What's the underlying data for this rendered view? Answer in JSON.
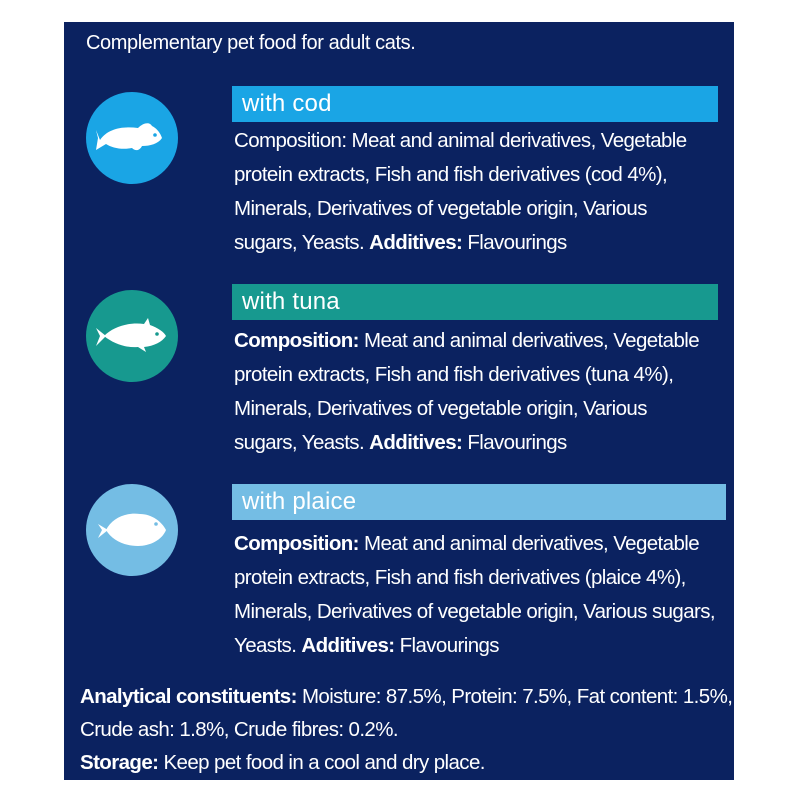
{
  "intro": "Complementary pet food for adult cats.",
  "colors": {
    "panel": "#0b2260",
    "cod": "#1aa5e5",
    "tuna": "#17998f",
    "plaice": "#74bde4"
  },
  "sections": [
    {
      "icon": "cod-fish-icon",
      "title": "with cod",
      "composition_label": "Composition:",
      "composition_lines": [
        " Meat and animal derivatives, Vegetable",
        "protein extracts, Fish and fish derivatives (cod 4%),",
        "Minerals, Derivatives of vegetable origin, Various"
      ],
      "last_line_prefix": "sugars, Yeasts. ",
      "additives_label": "Additives:",
      "additives_value": " Flavourings"
    },
    {
      "icon": "tuna-fish-icon",
      "title": "with tuna",
      "composition_label": "Composition:",
      "composition_lines": [
        " Meat and animal derivatives, Vegetable",
        "protein extracts, Fish and fish derivatives (tuna 4%),",
        "Minerals, Derivatives of vegetable origin, Various"
      ],
      "last_line_prefix": "sugars, Yeasts. ",
      "additives_label": "Additives:",
      "additives_value": " Flavourings"
    },
    {
      "icon": "plaice-fish-icon",
      "title": "with plaice",
      "composition_label": "Composition:",
      "composition_lines": [
        " Meat and animal derivatives, Vegetable",
        "protein extracts, Fish and fish derivatives (plaice 4%),",
        "Minerals, Derivatives of vegetable origin, Various sugars,"
      ],
      "last_line_prefix": "Yeasts. ",
      "additives_label": "Additives:",
      "additives_value": " Flavourings"
    }
  ],
  "analytical": {
    "label": "Analytical constituents:",
    "line1": " Moisture: 87.5%, Protein: 7.5%, Fat content: 1.5%,",
    "line2": "Crude ash: 1.8%, Crude fibres: 0.2%."
  },
  "storage": {
    "label": "Storage:",
    "value": " Keep pet food in a cool and dry place."
  }
}
